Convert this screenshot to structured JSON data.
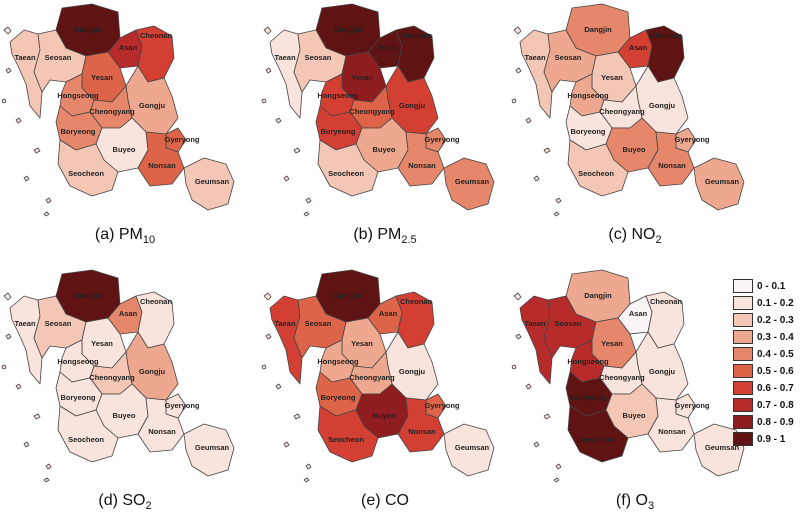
{
  "map_data": {
    "type": "choropleth",
    "region_names": [
      "Dangjin",
      "Asan",
      "Cheonan",
      "Taean",
      "Seosan",
      "Yesan",
      "Hongseong",
      "Gongju",
      "Cheongyang",
      "Boryeong",
      "Buyeo",
      "Gyeryong",
      "Nonsan",
      "Seocheon",
      "Geumsan"
    ],
    "legend": [
      {
        "label": "0 - 0.1",
        "color": "#fbf6f5"
      },
      {
        "label": "0.1 - 0.2",
        "color": "#f9e3dd"
      },
      {
        "label": "0.2 - 0.3",
        "color": "#f4c6b6"
      },
      {
        "label": "0.3 - 0.4",
        "color": "#eda88f"
      },
      {
        "label": "0.4 - 0.5",
        "color": "#e6876b"
      },
      {
        "label": "0.5 - 0.6",
        "color": "#de6449"
      },
      {
        "label": "0.6 - 0.7",
        "color": "#d43f33"
      },
      {
        "label": "0.7 - 0.8",
        "color": "#b82b2b"
      },
      {
        "label": "0.8 - 0.9",
        "color": "#8f1d1f"
      },
      {
        "label": "0.9 - 1",
        "color": "#601313"
      }
    ],
    "panels": [
      {
        "letter": "(a)",
        "pollutant": "PM",
        "sub": "10",
        "classes": {
          "Dangjin": 9,
          "Asan": 7,
          "Cheonan": 6,
          "Taean": 2,
          "Seosan": 2,
          "Yesan": 5,
          "Hongseong": 4,
          "Gongju": 3,
          "Cheongyang": 4,
          "Boryeong": 4,
          "Buyeo": 1,
          "Gyeryong": 5,
          "Nonsan": 5,
          "Seocheon": 2,
          "Geumsan": 2
        }
      },
      {
        "letter": "(b)",
        "pollutant": "PM",
        "sub": "2.5",
        "classes": {
          "Dangjin": 9,
          "Asan": 9,
          "Cheonan": 9,
          "Taean": 1,
          "Seosan": 2,
          "Yesan": 8,
          "Hongseong": 6,
          "Gongju": 6,
          "Cheongyang": 5,
          "Boryeong": 6,
          "Buyeo": 3,
          "Gyeryong": 4,
          "Nonsan": 4,
          "Seocheon": 2,
          "Geumsan": 4
        }
      },
      {
        "letter": "(c)",
        "pollutant": "NO",
        "sub": "2",
        "classes": {
          "Dangjin": 4,
          "Asan": 6,
          "Cheonan": 9,
          "Taean": 2,
          "Seosan": 3,
          "Yesan": 2,
          "Hongseong": 3,
          "Gongju": 1,
          "Cheongyang": 1,
          "Boryeong": 1,
          "Buyeo": 4,
          "Gyeryong": 3,
          "Nonsan": 4,
          "Seocheon": 2,
          "Geumsan": 3
        }
      },
      {
        "letter": "(d)",
        "pollutant": "SO",
        "sub": "2",
        "classes": {
          "Dangjin": 9,
          "Asan": 4,
          "Cheonan": 1,
          "Taean": 1,
          "Seosan": 2,
          "Yesan": 1,
          "Hongseong": 1,
          "Gongju": 3,
          "Cheongyang": 2,
          "Boryeong": 1,
          "Buyeo": 1,
          "Gyeryong": 1,
          "Nonsan": 1,
          "Seocheon": 1,
          "Geumsan": 1
        }
      },
      {
        "letter": "(e)",
        "pollutant": "CO",
        "sub": "",
        "classes": {
          "Dangjin": 9,
          "Asan": 5,
          "Cheonan": 6,
          "Taean": 6,
          "Seosan": 5,
          "Yesan": 3,
          "Hongseong": 3,
          "Gongju": 1,
          "Cheongyang": 3,
          "Boryeong": 5,
          "Buyeo": 8,
          "Gyeryong": 5,
          "Nonsan": 6,
          "Seocheon": 6,
          "Geumsan": 1
        }
      },
      {
        "letter": "(f)",
        "pollutant": "O",
        "sub": "3",
        "classes": {
          "Dangjin": 3,
          "Asan": 0,
          "Cheonan": 1,
          "Taean": 7,
          "Seosan": 7,
          "Yesan": 4,
          "Hongseong": 7,
          "Gongju": 1,
          "Cheongyang": 1,
          "Boryeong": 9,
          "Buyeo": 2,
          "Gyeryong": 1,
          "Nonsan": 1,
          "Seocheon": 9,
          "Geumsan": 1
        }
      }
    ]
  }
}
